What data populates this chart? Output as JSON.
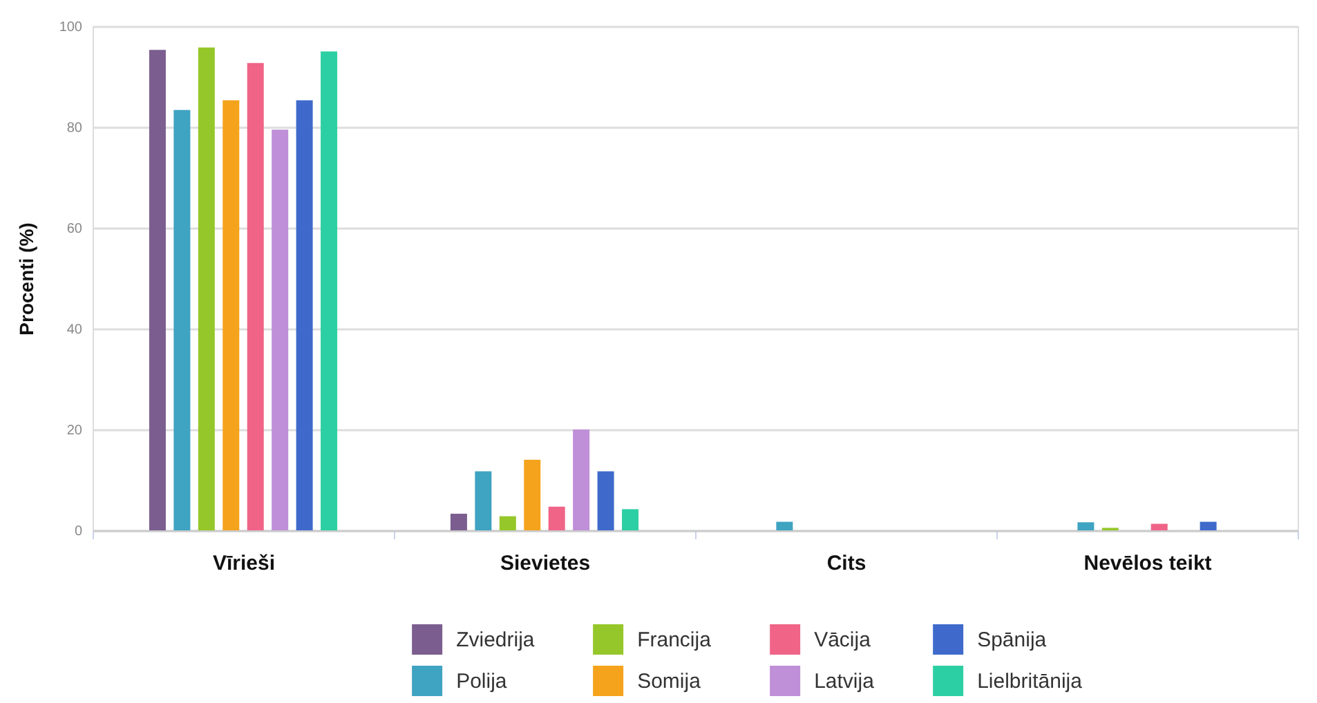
{
  "chart_data": {
    "type": "bar",
    "ylabel": "Procenti (%)",
    "categories": [
      "Vīrieši",
      "Sievietes",
      "Cits",
      "Nevēlos teikt"
    ],
    "series": [
      {
        "name": "Zviedrija",
        "color": "#7b5e8f",
        "values": [
          95.3,
          3.3,
          null,
          null
        ]
      },
      {
        "name": "Polija",
        "color": "#3fa3c2",
        "values": [
          83.4,
          11.7,
          1.7,
          1.6
        ]
      },
      {
        "name": "Francija",
        "color": "#96c72a",
        "values": [
          95.8,
          2.8,
          null,
          0.5
        ]
      },
      {
        "name": "Somija",
        "color": "#f5a31c",
        "values": [
          85.3,
          14.0,
          null,
          null
        ]
      },
      {
        "name": "Vācija",
        "color": "#ef6487",
        "values": [
          92.7,
          4.7,
          null,
          1.3
        ]
      },
      {
        "name": "Latvija",
        "color": "#bf8fd8",
        "values": [
          79.5,
          20.0,
          null,
          null
        ]
      },
      {
        "name": "Spānija",
        "color": "#3f6acb",
        "values": [
          85.3,
          11.7,
          null,
          1.7
        ]
      },
      {
        "name": "Lielbritānija",
        "color": "#2ccfa3",
        "values": [
          95.0,
          4.2,
          null,
          null
        ]
      }
    ],
    "ylim": [
      0,
      100
    ],
    "yticks": [
      0,
      20,
      40,
      60,
      80,
      100
    ],
    "grid": "y",
    "legend": "bottom"
  }
}
